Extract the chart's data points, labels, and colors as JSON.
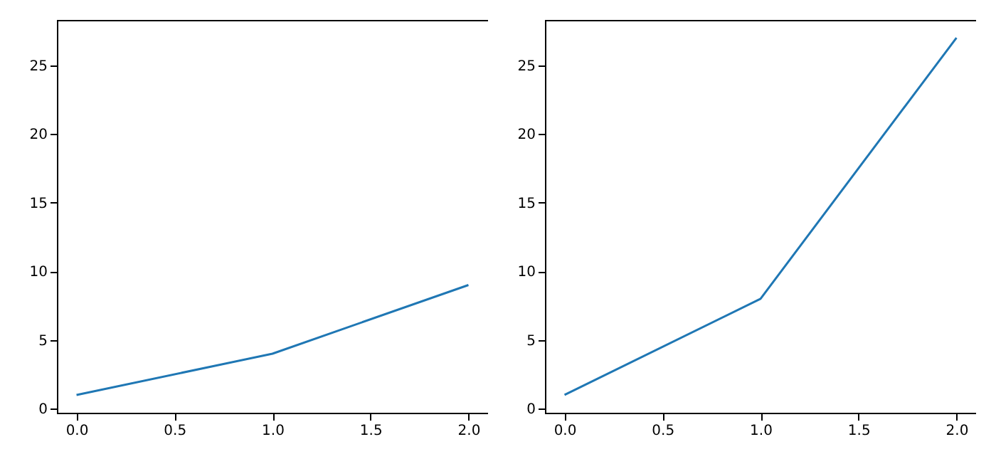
{
  "chart_data": [
    {
      "type": "line",
      "x": [
        0,
        1,
        2
      ],
      "series": [
        {
          "color": "#1f77b4",
          "values": [
            1,
            4,
            9
          ]
        }
      ],
      "xlim": [
        -0.1,
        2.1
      ],
      "xticks": [
        {
          "value": 0,
          "label": "0.0"
        },
        {
          "value": 0.5,
          "label": "0.5"
        },
        {
          "value": 1,
          "label": "1.0"
        },
        {
          "value": 1.5,
          "label": "1.5"
        },
        {
          "value": 2,
          "label": "2.0"
        }
      ],
      "ylim": [
        -0.3,
        28.3
      ],
      "yticks": [
        0,
        5,
        10,
        15,
        20,
        25
      ],
      "grid": false
    },
    {
      "type": "line",
      "x": [
        0,
        1,
        2
      ],
      "series": [
        {
          "color": "#1f77b4",
          "values": [
            1,
            8,
            27
          ]
        }
      ],
      "xlim": [
        -0.1,
        2.1
      ],
      "xticks": [
        {
          "value": 0,
          "label": "0.0"
        },
        {
          "value": 0.5,
          "label": "0.5"
        },
        {
          "value": 1,
          "label": "1.0"
        },
        {
          "value": 1.5,
          "label": "1.5"
        },
        {
          "value": 2,
          "label": "2.0"
        }
      ],
      "ylim": [
        -0.3,
        28.3
      ],
      "yticks": [
        0,
        5,
        10,
        15,
        20,
        25
      ],
      "grid": false
    }
  ]
}
